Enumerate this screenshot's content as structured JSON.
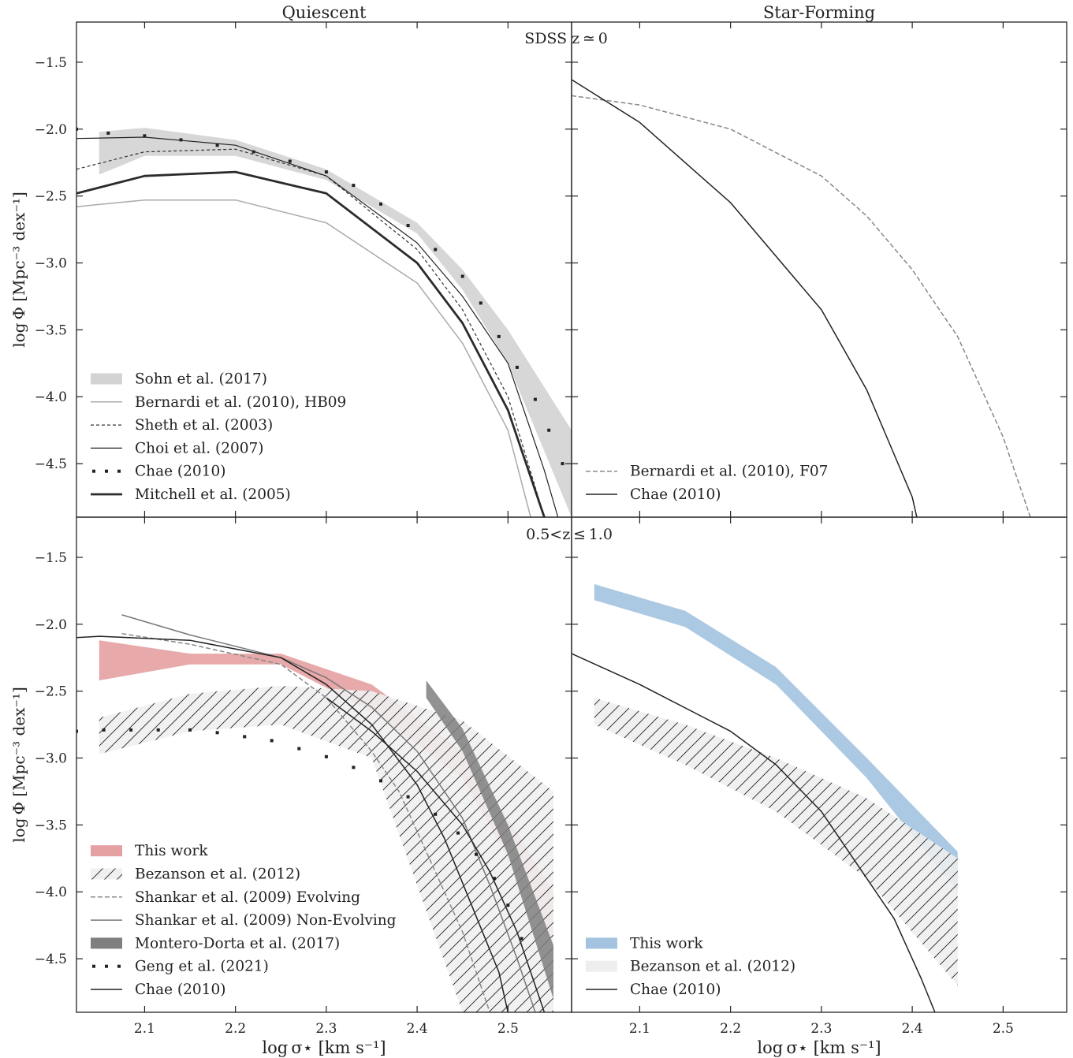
{
  "figure": {
    "col_titles": [
      "Quiescent",
      "Star-Forming"
    ],
    "row_labels": [
      "SDSS z ≃ 0",
      "0.5<z ≤ 1.0"
    ],
    "ylabel": "log Φ [Mpc⁻³ dex⁻¹]",
    "xlabel": "log σ⋆ [km s⁻¹]"
  },
  "chart_data": [
    {
      "id": "top-left",
      "type": "line",
      "title": "Quiescent",
      "xlim": [
        2.025,
        2.57
      ],
      "ylim": [
        -4.9,
        -1.2
      ],
      "xticks": [
        2.1,
        2.2,
        2.3,
        2.4,
        2.5
      ],
      "yticks": [
        -1.5,
        -2.0,
        -2.5,
        -3.0,
        -3.5,
        -4.0,
        -4.5
      ],
      "annotation": "SDSS z ≃ 0",
      "legend_position": "lower-left",
      "series": [
        {
          "name": "Sohn et al. (2017)",
          "kind": "band",
          "color": "#d3d3d3",
          "x": [
            2.05,
            2.1,
            2.2,
            2.3,
            2.4,
            2.45,
            2.5,
            2.57
          ],
          "upper": [
            -2.02,
            -1.99,
            -2.08,
            -2.3,
            -2.7,
            -3.05,
            -3.5,
            -4.25
          ],
          "lower": [
            -2.34,
            -2.2,
            -2.2,
            -2.38,
            -2.78,
            -3.2,
            -3.75,
            -4.9
          ]
        },
        {
          "name": "Bernardi et al. (2010), HB09",
          "kind": "line",
          "color": "#aaaaaa",
          "width": 1.5,
          "dash": "",
          "x": [
            2.025,
            2.1,
            2.2,
            2.3,
            2.4,
            2.45,
            2.5,
            2.525
          ],
          "y": [
            -2.58,
            -2.53,
            -2.53,
            -2.7,
            -3.15,
            -3.6,
            -4.25,
            -4.9
          ]
        },
        {
          "name": "Sheth et al. (2003)",
          "kind": "line",
          "color": "#333333",
          "width": 1.2,
          "dash": "4,3",
          "x": [
            2.025,
            2.1,
            2.2,
            2.3,
            2.4,
            2.45,
            2.5,
            2.54
          ],
          "y": [
            -2.3,
            -2.17,
            -2.15,
            -2.35,
            -2.9,
            -3.35,
            -4.0,
            -4.9
          ]
        },
        {
          "name": "Choi et al. (2007)",
          "kind": "line",
          "color": "#222222",
          "width": 1.2,
          "dash": "",
          "x": [
            2.025,
            2.1,
            2.2,
            2.3,
            2.4,
            2.45,
            2.5,
            2.54,
            2.555
          ],
          "y": [
            -2.07,
            -2.06,
            -2.12,
            -2.35,
            -2.85,
            -3.25,
            -3.75,
            -4.55,
            -4.9
          ]
        },
        {
          "name": "Chae (2010)",
          "kind": "dots",
          "color": "#222222",
          "x": [
            2.025,
            2.06,
            2.1,
            2.14,
            2.18,
            2.22,
            2.26,
            2.3,
            2.33,
            2.36,
            2.39,
            2.42,
            2.45,
            2.47,
            2.49,
            2.51,
            2.53,
            2.545,
            2.56
          ],
          "y": [
            -2.0,
            -2.03,
            -2.05,
            -2.08,
            -2.12,
            -2.17,
            -2.24,
            -2.32,
            -2.42,
            -2.56,
            -2.72,
            -2.9,
            -3.1,
            -3.3,
            -3.55,
            -3.78,
            -4.02,
            -4.25,
            -4.5
          ]
        },
        {
          "name": "Mitchell et al. (2005)",
          "kind": "line",
          "color": "#2b2b2b",
          "width": 2.8,
          "dash": "",
          "x": [
            2.025,
            2.1,
            2.2,
            2.3,
            2.4,
            2.45,
            2.5,
            2.54
          ],
          "y": [
            -2.48,
            -2.35,
            -2.32,
            -2.48,
            -3.0,
            -3.45,
            -4.1,
            -4.9
          ]
        }
      ]
    },
    {
      "id": "top-right",
      "type": "line",
      "title": "Star-Forming",
      "xlim": [
        2.025,
        2.57
      ],
      "ylim": [
        -4.9,
        -1.2
      ],
      "xticks": [
        2.1,
        2.2,
        2.3,
        2.4,
        2.5
      ],
      "yticks": [
        -1.5,
        -2.0,
        -2.5,
        -3.0,
        -3.5,
        -4.0,
        -4.5
      ],
      "legend_position": "lower-left",
      "series": [
        {
          "name": "Bernardi et al. (2010), F07",
          "kind": "line",
          "color": "#888888",
          "width": 1.5,
          "dash": "6,3",
          "x": [
            2.025,
            2.1,
            2.2,
            2.3,
            2.35,
            2.4,
            2.45,
            2.5,
            2.53
          ],
          "y": [
            -1.75,
            -1.82,
            -2.0,
            -2.35,
            -2.65,
            -3.05,
            -3.55,
            -4.3,
            -4.9
          ]
        },
        {
          "name": "Chae (2010)",
          "kind": "line",
          "color": "#222222",
          "width": 1.5,
          "dash": "",
          "x": [
            2.025,
            2.1,
            2.2,
            2.3,
            2.35,
            2.4,
            2.405
          ],
          "y": [
            -1.63,
            -1.95,
            -2.55,
            -3.35,
            -3.95,
            -4.75,
            -4.9
          ]
        }
      ]
    },
    {
      "id": "bottom-left",
      "type": "line",
      "title": "Quiescent",
      "xlim": [
        2.025,
        2.57
      ],
      "ylim": [
        -4.9,
        -1.2
      ],
      "xticks": [
        2.1,
        2.2,
        2.3,
        2.4,
        2.5
      ],
      "yticks": [
        -1.5,
        -2.0,
        -2.5,
        -3.0,
        -3.5,
        -4.0,
        -4.5
      ],
      "xlabel": "log σ⋆ [km s⁻¹]",
      "annotation": "0.5<z ≤ 1.0",
      "legend_position": "lower-left",
      "series": [
        {
          "name": "This work",
          "kind": "band",
          "color": "#e5a0a1",
          "x": [
            2.05,
            2.15,
            2.25,
            2.35,
            2.45,
            2.5,
            2.55
          ],
          "upper": [
            -2.12,
            -2.22,
            -2.22,
            -2.45,
            -2.95,
            -3.45,
            -4.0
          ],
          "lower": [
            -2.42,
            -2.3,
            -2.3,
            -2.65,
            -3.15,
            -3.75,
            -4.35
          ]
        },
        {
          "name": "Bezanson et al. (2012)",
          "kind": "hatchband",
          "color": "#f0f0f0",
          "x": [
            2.05,
            2.15,
            2.25,
            2.35,
            2.45,
            2.55
          ],
          "upper": [
            -2.7,
            -2.52,
            -2.46,
            -2.5,
            -2.72,
            -3.25
          ],
          "lower": [
            -2.97,
            -2.8,
            -2.75,
            -3.0,
            -4.9,
            -4.9
          ]
        },
        {
          "name": "Shankar et al. (2009) Evolving",
          "kind": "line",
          "color": "#888888",
          "width": 1.5,
          "dash": "6,3",
          "x": [
            2.075,
            2.15,
            2.25,
            2.3,
            2.35,
            2.38,
            2.42,
            2.45,
            2.47,
            2.48
          ],
          "y": [
            -2.07,
            -2.15,
            -2.3,
            -2.55,
            -2.95,
            -3.25,
            -3.85,
            -4.3,
            -4.7,
            -4.9
          ]
        },
        {
          "name": "Shankar et al. (2009) Non-Evolving",
          "kind": "line",
          "color": "#777777",
          "width": 1.5,
          "dash": "",
          "x": [
            2.075,
            2.15,
            2.25,
            2.3,
            2.35,
            2.4,
            2.45,
            2.48,
            2.51,
            2.53
          ],
          "y": [
            -1.93,
            -2.08,
            -2.25,
            -2.4,
            -2.62,
            -2.95,
            -3.45,
            -3.95,
            -4.5,
            -4.9
          ]
        },
        {
          "name": "Montero-Dorta et al. (2017)",
          "kind": "band",
          "color": "#7f7f7f",
          "x": [
            2.41,
            2.45,
            2.5,
            2.55
          ],
          "upper": [
            -2.42,
            -2.78,
            -3.5,
            -4.4
          ],
          "lower": [
            -2.55,
            -2.95,
            -3.72,
            -4.8
          ]
        },
        {
          "name": "Geng et al. (2021)",
          "kind": "dots",
          "color": "#222222",
          "x": [
            2.025,
            2.055,
            2.085,
            2.115,
            2.15,
            2.18,
            2.21,
            2.24,
            2.27,
            2.3,
            2.33,
            2.36,
            2.39,
            2.42,
            2.445,
            2.465,
            2.485,
            2.5,
            2.515
          ],
          "y": [
            -2.8,
            -2.79,
            -2.79,
            -2.79,
            -2.79,
            -2.81,
            -2.84,
            -2.87,
            -2.93,
            -2.99,
            -3.07,
            -3.17,
            -3.29,
            -3.42,
            -3.56,
            -3.72,
            -3.9,
            -4.1,
            -4.35
          ]
        },
        {
          "name": "Chae (2010)",
          "kind": "line",
          "color": "#222222",
          "width": 1.5,
          "dash": "",
          "x": [
            2.025,
            2.05,
            2.15,
            2.25,
            2.3,
            2.35,
            2.4,
            2.43,
            2.46,
            2.49,
            2.5
          ],
          "y": [
            -2.1,
            -2.09,
            -2.12,
            -2.25,
            -2.45,
            -2.75,
            -3.2,
            -3.6,
            -4.1,
            -4.6,
            -4.9
          ]
        },
        {
          "name": "",
          "kind": "line",
          "color": "#222222",
          "width": 1.5,
          "dash": "",
          "x": [
            2.3,
            2.35,
            2.4,
            2.45,
            2.48,
            2.51,
            2.53,
            2.54
          ],
          "y": [
            -2.55,
            -2.8,
            -3.1,
            -3.5,
            -3.85,
            -4.3,
            -4.7,
            -4.9
          ]
        }
      ]
    },
    {
      "id": "bottom-right",
      "type": "line",
      "title": "Star-Forming",
      "xlim": [
        2.025,
        2.57
      ],
      "ylim": [
        -4.9,
        -1.2
      ],
      "xticks": [
        2.1,
        2.2,
        2.3,
        2.4,
        2.5
      ],
      "yticks": [
        -1.5,
        -2.0,
        -2.5,
        -3.0,
        -3.5,
        -4.0,
        -4.5
      ],
      "xlabel": "log σ⋆ [km s⁻¹]",
      "legend_position": "lower-left",
      "series": [
        {
          "name": "This work",
          "kind": "band",
          "color": "#a3c3e0",
          "x": [
            2.05,
            2.15,
            2.25,
            2.35,
            2.45
          ],
          "upper": [
            -1.7,
            -1.9,
            -2.32,
            -3.0,
            -3.7
          ],
          "lower": [
            -1.82,
            -2.02,
            -2.45,
            -3.15,
            -4.0
          ]
        },
        {
          "name": "Bezanson et al. (2012)",
          "kind": "hatchband",
          "color": "#eeeeee",
          "x": [
            2.05,
            2.15,
            2.25,
            2.35,
            2.45
          ],
          "upper": [
            -2.55,
            -2.75,
            -3.0,
            -3.3,
            -3.75
          ],
          "lower": [
            -2.75,
            -3.05,
            -3.4,
            -3.9,
            -4.7
          ]
        },
        {
          "name": "Chae (2010)",
          "kind": "line",
          "color": "#222222",
          "width": 1.5,
          "dash": "",
          "x": [
            2.025,
            2.1,
            2.2,
            2.25,
            2.3,
            2.35,
            2.38,
            2.41,
            2.425
          ],
          "y": [
            -2.22,
            -2.45,
            -2.8,
            -3.05,
            -3.4,
            -3.9,
            -4.2,
            -4.65,
            -4.9
          ]
        }
      ]
    }
  ]
}
